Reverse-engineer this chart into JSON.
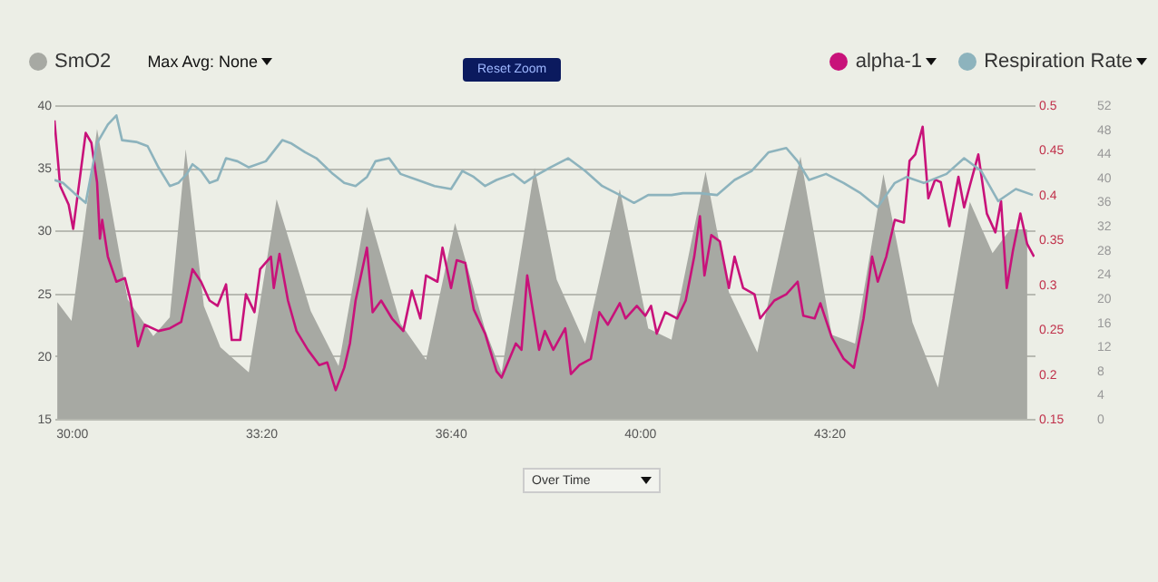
{
  "chart_data": {
    "type": "line",
    "annotations": [
      "Max Avg: None",
      "Reset Zoom",
      "Over Time"
    ],
    "xlim": [
      29.7,
      46.95
    ],
    "xticks": [
      {
        "value": 30,
        "label": "30:00"
      },
      {
        "value": 33.3333,
        "label": "33:20"
      },
      {
        "value": 36.6667,
        "label": "36:40"
      },
      {
        "value": 40,
        "label": "40:00"
      },
      {
        "value": 43.3333,
        "label": "43:20"
      }
    ],
    "ylim": [
      15,
      40
    ],
    "yticks": [
      15,
      20,
      25,
      30,
      35,
      40
    ],
    "y2lim": [
      0.15,
      0.5
    ],
    "y2ticks": [
      0.15,
      0.2,
      0.25,
      0.3,
      0.35,
      0.4,
      0.45,
      0.5
    ],
    "y3lim": [
      0,
      52
    ],
    "y3ticks": [
      0,
      4,
      8,
      12,
      16,
      20,
      24,
      28,
      32,
      36,
      40,
      44,
      48,
      52
    ],
    "grid": "y",
    "legend": "top",
    "series": [
      {
        "name": "SmO2",
        "type": "area",
        "color": "#a7a9a3",
        "x": [
          29.75,
          30.0,
          30.45,
          30.99,
          31.44,
          31.73,
          32.01,
          32.33,
          32.62,
          33.12,
          33.61,
          34.21,
          34.7,
          35.2,
          35.79,
          36.24,
          36.75,
          37.28,
          37.57,
          38.15,
          38.54,
          39.04,
          39.65,
          40.15,
          40.56,
          41.16,
          41.57,
          42.07,
          42.83,
          43.38,
          43.79,
          44.29,
          44.8,
          45.25,
          45.81,
          46.21,
          46.52,
          46.82
        ],
        "values": [
          24.3,
          22.8,
          38.1,
          24.5,
          21.6,
          23.1,
          36.5,
          24.0,
          20.7,
          18.7,
          32.5,
          23.6,
          19.2,
          31.9,
          22.6,
          19.7,
          30.6,
          22.1,
          18.7,
          35.0,
          26.1,
          21.0,
          33.3,
          22.2,
          21.3,
          34.7,
          25.1,
          20.3,
          35.9,
          21.7,
          21.0,
          34.5,
          22.7,
          17.5,
          32.3,
          28.2,
          30.1,
          30.1
        ]
      },
      {
        "name": "alpha-1",
        "axis": "y2",
        "color": "#c8127a",
        "x": [
          29.7,
          29.8,
          29.95,
          30.03,
          30.15,
          30.25,
          30.35,
          30.45,
          30.5,
          30.54,
          30.64,
          30.79,
          30.94,
          31.04,
          31.17,
          31.29,
          31.53,
          31.73,
          31.93,
          32.13,
          32.28,
          32.43,
          32.57,
          32.72,
          32.82,
          32.97,
          33.07,
          33.22,
          33.32,
          33.51,
          33.56,
          33.66,
          33.81,
          33.96,
          34.16,
          34.36,
          34.5,
          34.65,
          34.8,
          34.9,
          35.0,
          35.2,
          35.3,
          35.45,
          35.64,
          35.84,
          35.99,
          36.14,
          36.24,
          36.44,
          36.53,
          36.68,
          36.78,
          36.93,
          37.08,
          37.28,
          37.48,
          37.57,
          37.82,
          37.92,
          38.02,
          38.23,
          38.33,
          38.48,
          38.69,
          38.79,
          38.94,
          39.14,
          39.29,
          39.44,
          39.65,
          39.75,
          39.95,
          40.1,
          40.2,
          40.3,
          40.45,
          40.66,
          40.81,
          40.96,
          41.06,
          41.14,
          41.26,
          41.41,
          41.57,
          41.67,
          41.82,
          42.02,
          42.12,
          42.37,
          42.58,
          42.78,
          42.88,
          43.08,
          43.18,
          43.38,
          43.59,
          43.77,
          43.94,
          44.09,
          44.19,
          44.34,
          44.49,
          44.65,
          44.75,
          44.85,
          44.98,
          45.08,
          45.2,
          45.3,
          45.45,
          45.61,
          45.71,
          45.81,
          45.96,
          46.11,
          46.26,
          46.36,
          46.46,
          46.57,
          46.7,
          46.82,
          46.94
        ],
        "values": [
          0.483,
          0.41,
          0.389,
          0.362,
          0.42,
          0.469,
          0.458,
          0.414,
          0.351,
          0.372,
          0.331,
          0.303,
          0.307,
          0.282,
          0.231,
          0.255,
          0.248,
          0.251,
          0.258,
          0.317,
          0.303,
          0.282,
          0.276,
          0.3,
          0.238,
          0.238,
          0.289,
          0.269,
          0.317,
          0.331,
          0.296,
          0.334,
          0.282,
          0.248,
          0.227,
          0.21,
          0.213,
          0.182,
          0.207,
          0.234,
          0.282,
          0.341,
          0.269,
          0.282,
          0.262,
          0.248,
          0.293,
          0.262,
          0.31,
          0.303,
          0.341,
          0.296,
          0.327,
          0.324,
          0.272,
          0.245,
          0.203,
          0.196,
          0.234,
          0.227,
          0.31,
          0.227,
          0.248,
          0.227,
          0.251,
          0.2,
          0.21,
          0.217,
          0.269,
          0.255,
          0.279,
          0.262,
          0.276,
          0.265,
          0.276,
          0.245,
          0.269,
          0.262,
          0.282,
          0.331,
          0.376,
          0.31,
          0.355,
          0.348,
          0.296,
          0.331,
          0.296,
          0.289,
          0.262,
          0.282,
          0.289,
          0.303,
          0.265,
          0.262,
          0.279,
          0.241,
          0.217,
          0.207,
          0.262,
          0.331,
          0.303,
          0.331,
          0.372,
          0.369,
          0.438,
          0.445,
          0.476,
          0.396,
          0.417,
          0.414,
          0.365,
          0.42,
          0.386,
          0.41,
          0.445,
          0.379,
          0.358,
          0.393,
          0.296,
          0.338,
          0.379,
          0.345,
          0.331
        ]
      },
      {
        "name": "Respiration Rate",
        "axis": "y3",
        "color": "#8db3bd",
        "x": [
          29.7,
          29.85,
          30.05,
          30.25,
          30.45,
          30.64,
          30.79,
          30.89,
          31.14,
          31.34,
          31.53,
          31.73,
          31.88,
          32.03,
          32.13,
          32.28,
          32.43,
          32.57,
          32.72,
          32.92,
          33.12,
          33.42,
          33.71,
          33.86,
          34.11,
          34.31,
          34.6,
          34.8,
          35.0,
          35.2,
          35.35,
          35.59,
          35.79,
          36.09,
          36.39,
          36.68,
          36.88,
          37.08,
          37.28,
          37.48,
          37.77,
          37.97,
          38.13,
          38.43,
          38.74,
          39.04,
          39.34,
          39.65,
          39.9,
          40.15,
          40.56,
          40.76,
          41.06,
          41.36,
          41.67,
          41.97,
          42.27,
          42.58,
          42.78,
          42.98,
          43.28,
          43.59,
          43.89,
          44.19,
          44.49,
          44.7,
          45.0,
          45.4,
          45.71,
          46.01,
          46.31,
          46.62,
          46.92
        ],
        "values": [
          39.6,
          39.1,
          37.4,
          35.8,
          45.7,
          48.8,
          50.3,
          46.2,
          45.9,
          45.2,
          41.7,
          38.6,
          39.1,
          40.6,
          42.2,
          41.1,
          39.1,
          39.6,
          43.2,
          42.7,
          41.7,
          42.7,
          46.2,
          45.7,
          44.2,
          43.2,
          40.6,
          39.1,
          38.6,
          40.1,
          42.7,
          43.2,
          40.6,
          39.6,
          38.6,
          38.1,
          41.1,
          40.1,
          38.6,
          39.6,
          40.6,
          39.1,
          40.1,
          41.7,
          43.2,
          41.1,
          38.6,
          37.1,
          35.8,
          37.1,
          37.1,
          37.4,
          37.4,
          37.1,
          39.6,
          41.1,
          44.2,
          44.9,
          42.7,
          39.6,
          40.6,
          39.1,
          37.4,
          35.1,
          39.1,
          40.1,
          39.1,
          40.6,
          43.2,
          41.1,
          36.1,
          38.1,
          37.1
        ]
      }
    ]
  }
}
